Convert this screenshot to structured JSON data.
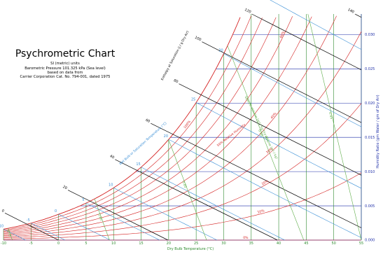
{
  "header": {
    "title": "Psychrometric Chart",
    "subtitle_lines": [
      "SI (metric) units",
      "Barometric Pressure 101.325 kPa (Sea level)",
      "based on data from",
      "Carrier Corporation Cat. No. 794-001, dated 1975"
    ]
  },
  "colors": {
    "dry_bulb": "#2e8b2e",
    "humidity_ratio": "#1f2fa8",
    "enthalpy": "#000000",
    "wet_bulb": "#3a8fd6",
    "relative_humidity": "#d42020",
    "specific_volume": "#5fae4a"
  },
  "chart_data": {
    "type": "line",
    "title": "Psychrometric Chart",
    "xlabel": "Dry Bulb Temperature (°C)",
    "ylabel": "Humidity Ratio (gm Water / gm of Dry Air)",
    "xlim": [
      -10,
      55
    ],
    "ylim": [
      0,
      0.033
    ],
    "x_ticks": [
      -10,
      -5,
      0,
      5,
      10,
      15,
      20,
      25,
      30,
      35,
      40,
      45,
      50,
      55
    ],
    "y_ticks": [
      0.0,
      0.005,
      0.01,
      0.015,
      0.02,
      0.025,
      0.03
    ],
    "y_tick_labels": [
      "0.000",
      "0.005",
      "0.010",
      "0.015",
      "0.020",
      "0.025",
      "0.030"
    ],
    "grid": true,
    "pressure_kpa": 101.325,
    "relative_humidity_lines": {
      "values_percent": [
        100,
        90,
        80,
        70,
        60,
        50,
        40,
        30,
        20,
        10,
        0
      ],
      "labels": [
        "100%",
        "90%",
        "80%",
        "70%",
        "60%",
        "50% Relative Humidity",
        "40%",
        "30%",
        "20%",
        "10%",
        "0%"
      ]
    },
    "wet_bulb_lines": {
      "values_c": [
        -10,
        -5,
        0,
        5,
        10,
        15,
        20,
        25,
        30,
        35
      ],
      "labels": [
        "-10",
        "-5",
        "0",
        "5",
        "10",
        "15",
        "20",
        "25",
        "30",
        "35"
      ],
      "axis_label": "Wet Bulb or Saturation Temperature (°C)"
    },
    "enthalpy_lines": {
      "values_kj_per_kg": [
        0,
        20,
        40,
        60,
        80,
        100,
        120,
        140
      ],
      "labels": [
        "0",
        "20",
        "40",
        "60",
        "80",
        "100",
        "120",
        "140"
      ],
      "axis_label": "Enthalpy at Saturation (J / g Dry Air)"
    },
    "specific_volume_lines": {
      "values_m3_per_kg": [
        0.75,
        0.8,
        0.85,
        0.9,
        0.95
      ],
      "labels": [
        "0.75",
        "0.80",
        "0.85",
        "0.90",
        "0.95"
      ],
      "axis_label": "Specific Volume (m³ / kg Dry Air)",
      "axis_label_2": "Volume (m³ / kg)"
    }
  }
}
